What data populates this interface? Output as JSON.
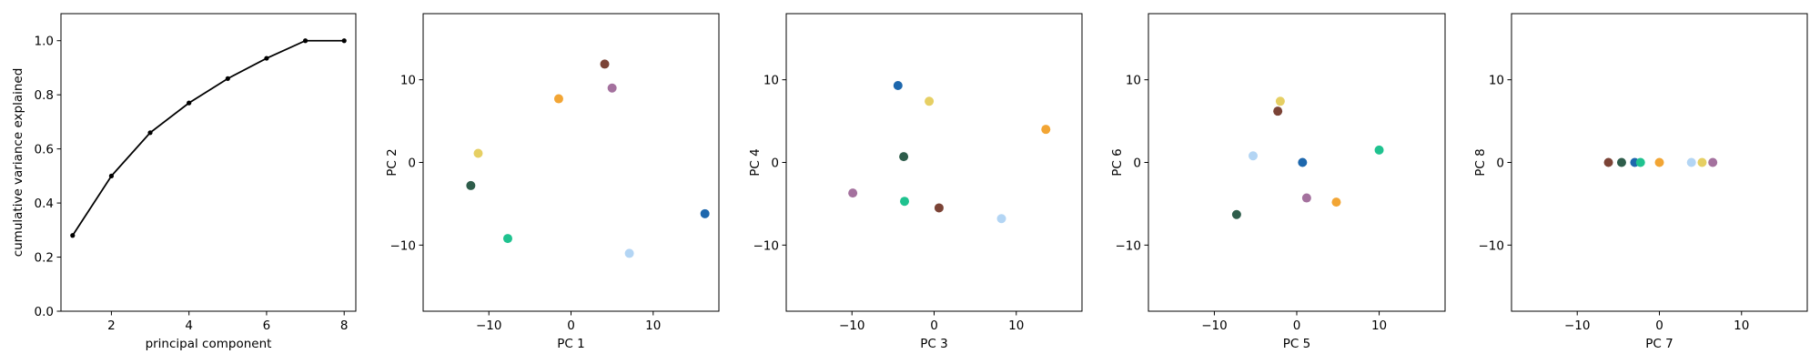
{
  "chart_data": [
    {
      "type": "line",
      "xlabel": "principal component",
      "ylabel": "cumulative variance explained",
      "xlim": [
        0.7,
        8.3
      ],
      "ylim": [
        0.0,
        1.1
      ],
      "xticks": [
        2,
        4,
        6,
        8
      ],
      "yticks": [
        0.0,
        0.2,
        0.4,
        0.6,
        0.8,
        1.0
      ],
      "xtick_labels": [
        "2",
        "4",
        "6",
        "8"
      ],
      "ytick_labels": [
        "0.0",
        "0.2",
        "0.4",
        "0.6",
        "0.8",
        "1.0"
      ],
      "x": [
        1,
        2,
        3,
        4,
        5,
        6,
        7,
        8
      ],
      "y": [
        0.28,
        0.5,
        0.66,
        0.77,
        0.86,
        0.935,
        1.0,
        1.0
      ],
      "line_color": "#000000",
      "grid": false
    },
    {
      "type": "scatter",
      "xlabel": "PC 1",
      "ylabel": "PC 2",
      "xlim": [
        -18,
        18
      ],
      "ylim": [
        -18,
        18
      ],
      "xticks": [
        -10,
        0,
        10
      ],
      "yticks": [
        -10,
        0,
        10
      ],
      "xtick_labels": [
        "−10",
        "0",
        "10"
      ],
      "ytick_labels": [
        "−10",
        "0",
        "10"
      ],
      "points": [
        {
          "x": 4.1,
          "y": 11.9,
          "color": "#7b4336"
        },
        {
          "x": 5.0,
          "y": 9.0,
          "color": "#a4719e"
        },
        {
          "x": -1.5,
          "y": 7.7,
          "color": "#f2a534"
        },
        {
          "x": -11.3,
          "y": 1.1,
          "color": "#e6cf63"
        },
        {
          "x": -12.2,
          "y": -2.8,
          "color": "#2e5d4b"
        },
        {
          "x": -7.7,
          "y": -9.2,
          "color": "#1fc28f"
        },
        {
          "x": 7.1,
          "y": -11.0,
          "color": "#b3d5f4"
        },
        {
          "x": 16.3,
          "y": -6.2,
          "color": "#1d67ad"
        }
      ],
      "grid": false
    },
    {
      "type": "scatter",
      "xlabel": "PC 3",
      "ylabel": "PC 4",
      "xlim": [
        -18,
        18
      ],
      "ylim": [
        -18,
        18
      ],
      "xticks": [
        -10,
        0,
        10
      ],
      "yticks": [
        -10,
        0,
        10
      ],
      "xtick_labels": [
        "−10",
        "0",
        "10"
      ],
      "ytick_labels": [
        "−10",
        "0",
        "10"
      ],
      "points": [
        {
          "x": -4.4,
          "y": 9.3,
          "color": "#1d67ad"
        },
        {
          "x": -0.6,
          "y": 7.4,
          "color": "#e6cf63"
        },
        {
          "x": 13.6,
          "y": 4.0,
          "color": "#f2a534"
        },
        {
          "x": -3.7,
          "y": 0.7,
          "color": "#2e5d4b"
        },
        {
          "x": -9.9,
          "y": -3.7,
          "color": "#a4719e"
        },
        {
          "x": -3.6,
          "y": -4.7,
          "color": "#1fc28f"
        },
        {
          "x": 0.6,
          "y": -5.5,
          "color": "#7b4336"
        },
        {
          "x": 8.2,
          "y": -6.8,
          "color": "#b3d5f4"
        }
      ],
      "grid": false
    },
    {
      "type": "scatter",
      "xlabel": "PC 5",
      "ylabel": "PC 6",
      "xlim": [
        -18,
        18
      ],
      "ylim": [
        -18,
        18
      ],
      "xticks": [
        -10,
        0,
        10
      ],
      "yticks": [
        -10,
        0,
        10
      ],
      "xtick_labels": [
        "−10",
        "0",
        "10"
      ],
      "ytick_labels": [
        "−10",
        "0",
        "10"
      ],
      "points": [
        {
          "x": -2.0,
          "y": 7.4,
          "color": "#e6cf63"
        },
        {
          "x": -2.3,
          "y": 6.2,
          "color": "#7b4336"
        },
        {
          "x": -5.3,
          "y": 0.8,
          "color": "#b3d5f4"
        },
        {
          "x": 0.7,
          "y": 0.0,
          "color": "#1d67ad"
        },
        {
          "x": 10.0,
          "y": 1.5,
          "color": "#1fc28f"
        },
        {
          "x": 1.2,
          "y": -4.3,
          "color": "#a4719e"
        },
        {
          "x": 4.8,
          "y": -4.8,
          "color": "#f2a534"
        },
        {
          "x": -7.3,
          "y": -6.3,
          "color": "#2e5d4b"
        }
      ],
      "grid": false
    },
    {
      "type": "scatter",
      "xlabel": "PC 7",
      "ylabel": "PC 8",
      "xlim": [
        -18,
        18
      ],
      "ylim": [
        -18,
        18
      ],
      "xticks": [
        -10,
        0,
        10
      ],
      "yticks": [
        -10,
        0,
        10
      ],
      "xtick_labels": [
        "−10",
        "0",
        "10"
      ],
      "ytick_labels": [
        "−10",
        "0",
        "10"
      ],
      "points": [
        {
          "x": -6.2,
          "y": 0.0,
          "color": "#7b4336"
        },
        {
          "x": -4.6,
          "y": 0.0,
          "color": "#2e5d4b"
        },
        {
          "x": -3.0,
          "y": 0.0,
          "color": "#1d67ad"
        },
        {
          "x": -2.3,
          "y": 0.0,
          "color": "#1fc28f"
        },
        {
          "x": 0.0,
          "y": 0.0,
          "color": "#f2a534"
        },
        {
          "x": 3.9,
          "y": 0.0,
          "color": "#b3d5f4"
        },
        {
          "x": 5.2,
          "y": 0.0,
          "color": "#e6cf63"
        },
        {
          "x": 6.5,
          "y": 0.0,
          "color": "#a4719e"
        }
      ],
      "grid": false
    }
  ]
}
